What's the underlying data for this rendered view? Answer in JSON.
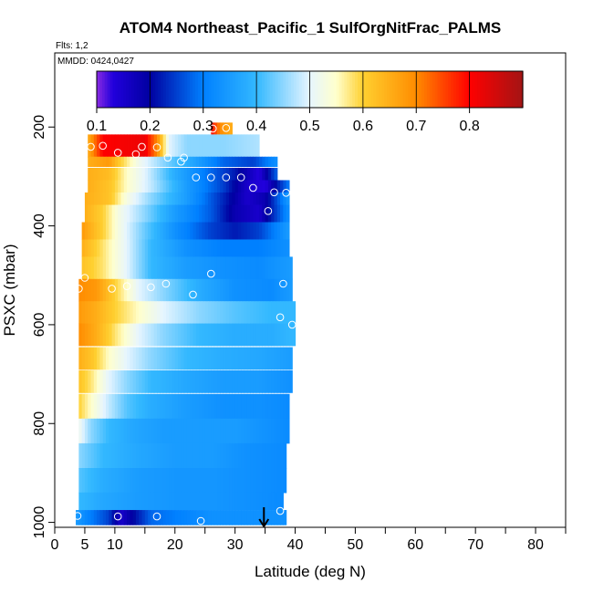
{
  "chart_data": {
    "type": "heatmap",
    "title": "ATOM4 Northeast_Pacific_1 SulfOrgNitFrac_PALMS",
    "subtitle_flights": "Flts: 1,2",
    "subtitle_dates": "MMDD: 0424,0427",
    "xlabel": "Latitude (deg N)",
    "ylabel": "PSXC (mbar)",
    "xlim": [
      0,
      85
    ],
    "ylim": [
      1010,
      50
    ],
    "y_reversed": true,
    "x_ticks": [
      0,
      5,
      10,
      20,
      30,
      40,
      50,
      60,
      70,
      80
    ],
    "x_tick_labels": [
      "0",
      "5",
      "10",
      "20",
      "30",
      "40",
      "50",
      "60",
      "70",
      "80"
    ],
    "x_minor_ticks": [
      15,
      25,
      35,
      45,
      55,
      65,
      75,
      85
    ],
    "y_ticks": [
      200,
      400,
      600,
      800,
      1000
    ],
    "y_tick_labels": [
      "200",
      "400",
      "600",
      "800",
      "1000"
    ],
    "colorbar": {
      "range": [
        0.1,
        0.9
      ],
      "ticks": [
        0.1,
        0.2,
        0.3,
        0.4,
        0.5,
        0.6,
        0.7,
        0.8
      ],
      "tick_labels": [
        "0.1",
        "0.2",
        "0.3",
        "0.4",
        "0.5",
        "0.6",
        "0.7",
        "0.8"
      ],
      "color_stops": [
        {
          "v": 0.1,
          "c": "#8a2be2"
        },
        {
          "v": 0.13,
          "c": "#2200dd"
        },
        {
          "v": 0.2,
          "c": "#0000a0"
        },
        {
          "v": 0.3,
          "c": "#0080ff"
        },
        {
          "v": 0.4,
          "c": "#33b8ff"
        },
        {
          "v": 0.5,
          "c": "#e6f5ff"
        },
        {
          "v": 0.55,
          "c": "#ffffcc"
        },
        {
          "v": 0.6,
          "c": "#ffd030"
        },
        {
          "v": 0.7,
          "c": "#ff8c00"
        },
        {
          "v": 0.8,
          "c": "#ff0000"
        },
        {
          "v": 0.9,
          "c": "#a31515"
        }
      ]
    },
    "grid": false,
    "marker_latitude": 34.8,
    "bands": [
      {
        "p": 203,
        "dp": 24,
        "xmin": 26.0,
        "xmax": 29.5,
        "kx": [
          26,
          27.5,
          29.5
        ],
        "kv": [
          0.8,
          0.7,
          0.65
        ]
      },
      {
        "p": 238,
        "dp": 46,
        "xmin": 5.5,
        "xmax": 34.0,
        "kx": [
          5.5,
          8,
          15,
          17,
          19,
          22,
          28,
          34
        ],
        "kv": [
          0.65,
          0.8,
          0.82,
          0.7,
          0.5,
          0.45,
          0.45,
          0.47
        ]
      },
      {
        "p": 270,
        "dp": 20,
        "xmin": 5.5,
        "xmax": 37.0,
        "kx": [
          5.5,
          9,
          11,
          14,
          18,
          24,
          28,
          33,
          37
        ],
        "kv": [
          0.65,
          0.68,
          0.6,
          0.52,
          0.45,
          0.35,
          0.28,
          0.25,
          0.33
        ]
      },
      {
        "p": 295,
        "dp": 25,
        "xmin": 5.5,
        "xmax": 37.0,
        "kx": [
          5.5,
          9,
          12,
          15,
          20,
          26,
          30,
          34,
          37
        ],
        "kv": [
          0.65,
          0.63,
          0.55,
          0.5,
          0.38,
          0.28,
          0.22,
          0.13,
          0.28
        ]
      },
      {
        "p": 320,
        "dp": 25,
        "xmin": 5.5,
        "xmax": 39.0,
        "kx": [
          5.5,
          9,
          12,
          16,
          22,
          28,
          32,
          35,
          39
        ],
        "kv": [
          0.65,
          0.62,
          0.55,
          0.48,
          0.35,
          0.25,
          0.15,
          0.13,
          0.3
        ]
      },
      {
        "p": 345,
        "dp": 25,
        "xmin": 5.0,
        "xmax": 39.0,
        "kx": [
          5,
          9,
          12,
          16,
          22,
          27,
          32,
          35,
          39
        ],
        "kv": [
          0.65,
          0.62,
          0.53,
          0.45,
          0.35,
          0.25,
          0.15,
          0.18,
          0.35
        ]
      },
      {
        "p": 375,
        "dp": 35,
        "xmin": 5.0,
        "xmax": 39.0,
        "kx": [
          5,
          8,
          11,
          15,
          20,
          26,
          30,
          34,
          39
        ],
        "kv": [
          0.65,
          0.6,
          0.52,
          0.45,
          0.35,
          0.27,
          0.18,
          0.15,
          0.33
        ]
      },
      {
        "p": 410,
        "dp": 35,
        "xmin": 4.5,
        "xmax": 39.0,
        "kx": [
          4.5,
          8,
          11,
          15,
          20,
          26,
          30,
          34,
          39
        ],
        "kv": [
          0.68,
          0.6,
          0.52,
          0.43,
          0.33,
          0.25,
          0.22,
          0.25,
          0.35
        ]
      },
      {
        "p": 445,
        "dp": 35,
        "xmin": 4.5,
        "xmax": 39.0,
        "kx": [
          4.5,
          8,
          12,
          16,
          22,
          28,
          34,
          39
        ],
        "kv": [
          0.65,
          0.58,
          0.5,
          0.4,
          0.33,
          0.3,
          0.3,
          0.33
        ]
      },
      {
        "p": 485,
        "dp": 45,
        "xmin": 4.5,
        "xmax": 39.5,
        "kx": [
          4.5,
          8,
          12,
          16,
          22,
          28,
          34,
          39.5
        ],
        "kv": [
          0.62,
          0.58,
          0.5,
          0.4,
          0.35,
          0.33,
          0.32,
          0.35
        ]
      },
      {
        "p": 530,
        "dp": 45,
        "xmin": 4.0,
        "xmax": 39.5,
        "kx": [
          4,
          7,
          10,
          14,
          18,
          24,
          30,
          36,
          39.5
        ],
        "kv": [
          0.7,
          0.68,
          0.6,
          0.5,
          0.45,
          0.38,
          0.33,
          0.32,
          0.35
        ]
      },
      {
        "p": 575,
        "dp": 45,
        "xmin": 4.0,
        "xmax": 40.0,
        "kx": [
          4,
          7,
          10,
          14,
          18,
          24,
          30,
          36,
          40
        ],
        "kv": [
          0.68,
          0.65,
          0.6,
          0.55,
          0.5,
          0.45,
          0.42,
          0.4,
          0.4
        ]
      },
      {
        "p": 620,
        "dp": 45,
        "xmin": 4.0,
        "xmax": 40.0,
        "kx": [
          4,
          7,
          10,
          14,
          18,
          24,
          30,
          36,
          40
        ],
        "kv": [
          0.7,
          0.65,
          0.58,
          0.5,
          0.45,
          0.4,
          0.38,
          0.38,
          0.4
        ]
      },
      {
        "p": 668,
        "dp": 45,
        "xmin": 4.0,
        "xmax": 39.5,
        "kx": [
          4,
          6,
          9,
          12,
          16,
          22,
          28,
          34,
          39.5
        ],
        "kv": [
          0.65,
          0.62,
          0.55,
          0.5,
          0.45,
          0.4,
          0.38,
          0.37,
          0.35
        ]
      },
      {
        "p": 715,
        "dp": 45,
        "xmin": 4.0,
        "xmax": 39.5,
        "kx": [
          4,
          6,
          9,
          12,
          16,
          22,
          28,
          34,
          39.5
        ],
        "kv": [
          0.62,
          0.58,
          0.5,
          0.45,
          0.4,
          0.37,
          0.35,
          0.35,
          0.33
        ]
      },
      {
        "p": 765,
        "dp": 50,
        "xmin": 4.0,
        "xmax": 39.0,
        "kx": [
          4,
          6,
          9,
          12,
          16,
          22,
          28,
          34,
          39
        ],
        "kv": [
          0.6,
          0.55,
          0.48,
          0.42,
          0.38,
          0.35,
          0.33,
          0.33,
          0.32
        ]
      },
      {
        "p": 815,
        "dp": 50,
        "xmin": 4.0,
        "xmax": 39.0,
        "kx": [
          4,
          6,
          9,
          13,
          18,
          24,
          30,
          36,
          39
        ],
        "kv": [
          0.52,
          0.45,
          0.4,
          0.37,
          0.35,
          0.35,
          0.35,
          0.33,
          0.32
        ]
      },
      {
        "p": 865,
        "dp": 50,
        "xmin": 4.0,
        "xmax": 38.5,
        "kx": [
          4,
          8,
          14,
          20,
          26,
          32,
          38.5
        ],
        "kv": [
          0.45,
          0.4,
          0.37,
          0.35,
          0.35,
          0.33,
          0.32
        ]
      },
      {
        "p": 915,
        "dp": 50,
        "xmin": 4.0,
        "xmax": 38.5,
        "kx": [
          4,
          8,
          14,
          20,
          26,
          32,
          38.5
        ],
        "kv": [
          0.42,
          0.38,
          0.35,
          0.34,
          0.34,
          0.33,
          0.32
        ]
      },
      {
        "p": 957,
        "dp": 35,
        "xmin": 4.0,
        "xmax": 38.0,
        "kx": [
          4,
          8,
          14,
          20,
          26,
          32,
          38
        ],
        "kv": [
          0.4,
          0.37,
          0.35,
          0.34,
          0.34,
          0.33,
          0.32
        ]
      },
      {
        "p": 990,
        "dp": 30,
        "xmin": 3.5,
        "xmax": 38.5,
        "kx": [
          3.5,
          6,
          9,
          11,
          13,
          16,
          20,
          26,
          32,
          38.5
        ],
        "kv": [
          0.35,
          0.3,
          0.25,
          0.15,
          0.2,
          0.28,
          0.3,
          0.33,
          0.33,
          0.33
        ]
      }
    ],
    "points": [
      {
        "lat": 26.3,
        "p": 203
      },
      {
        "lat": 28.5,
        "p": 202
      },
      {
        "lat": 6.0,
        "p": 240
      },
      {
        "lat": 8.0,
        "p": 238
      },
      {
        "lat": 10.5,
        "p": 252
      },
      {
        "lat": 13.5,
        "p": 255
      },
      {
        "lat": 14.5,
        "p": 240
      },
      {
        "lat": 17.0,
        "p": 241
      },
      {
        "lat": 18.8,
        "p": 262
      },
      {
        "lat": 21.0,
        "p": 270
      },
      {
        "lat": 21.5,
        "p": 262
      },
      {
        "lat": 23.5,
        "p": 302
      },
      {
        "lat": 26.0,
        "p": 302
      },
      {
        "lat": 28.5,
        "p": 302
      },
      {
        "lat": 31.0,
        "p": 302
      },
      {
        "lat": 33.0,
        "p": 323
      },
      {
        "lat": 36.5,
        "p": 332
      },
      {
        "lat": 38.5,
        "p": 333
      },
      {
        "lat": 35.5,
        "p": 370
      },
      {
        "lat": 26.0,
        "p": 497
      },
      {
        "lat": 5.0,
        "p": 505
      },
      {
        "lat": 4.0,
        "p": 527
      },
      {
        "lat": 9.5,
        "p": 527
      },
      {
        "lat": 12.0,
        "p": 522
      },
      {
        "lat": 16.0,
        "p": 524
      },
      {
        "lat": 18.5,
        "p": 517
      },
      {
        "lat": 23.0,
        "p": 539
      },
      {
        "lat": 38.0,
        "p": 517
      },
      {
        "lat": 37.5,
        "p": 585
      },
      {
        "lat": 39.5,
        "p": 600
      },
      {
        "lat": 3.8,
        "p": 987
      },
      {
        "lat": 10.5,
        "p": 988
      },
      {
        "lat": 17.0,
        "p": 988
      },
      {
        "lat": 24.3,
        "p": 997
      },
      {
        "lat": 37.5,
        "p": 977
      }
    ]
  }
}
